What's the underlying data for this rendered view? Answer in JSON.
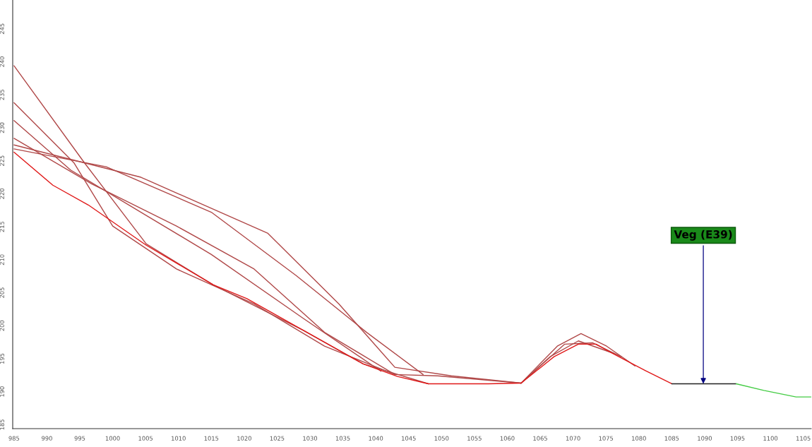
{
  "chart_data": {
    "type": "line",
    "xlim": [
      984.8,
      1106.2
    ],
    "ylim": [
      184.4,
      249.3
    ],
    "xticks": [
      985,
      990,
      995,
      1000,
      1005,
      1010,
      1015,
      1020,
      1025,
      1030,
      1035,
      1040,
      1045,
      1050,
      1055,
      1060,
      1065,
      1070,
      1075,
      1080,
      1085,
      1090,
      1095,
      1100,
      1105
    ],
    "yticks": [
      185,
      190,
      195,
      200,
      205,
      210,
      215,
      220,
      225,
      230,
      235,
      240,
      245
    ],
    "grid": false,
    "legend": false,
    "annotations": [
      {
        "text": "Veg (E39)",
        "x": 1089.8,
        "y": 191.2
      }
    ],
    "series": [
      {
        "color": "#b04848",
        "x": [
          985.0,
          995.7,
          1005.1,
          1015.3,
          1029.0,
          1038.1,
          1048.0
        ],
        "values": [
          239.4,
          224.7,
          212.4,
          206.2,
          199.3,
          194.2,
          191.2
        ]
      },
      {
        "color": "#b04848",
        "x": [
          985.0,
          994.1,
          1000.0,
          1009.7,
          1021.5,
          1032.2,
          1042.9
        ],
        "values": [
          233.8,
          224.7,
          215.1,
          208.6,
          203.3,
          196.9,
          192.6
        ]
      },
      {
        "color": "#b04848",
        "x": [
          985.0,
          999.0,
          1015.0,
          1027.9,
          1038.6,
          1047.2
        ],
        "values": [
          226.8,
          224.1,
          217.2,
          207.6,
          199.0,
          192.6
        ]
      },
      {
        "color": "#b04848",
        "x": [
          985.0,
          1004.3,
          1023.6,
          1034.4,
          1042.9,
          1051.5,
          1062.1
        ],
        "values": [
          227.4,
          222.5,
          214.0,
          203.3,
          193.7,
          192.4,
          191.3
        ]
      },
      {
        "color": "#b04848",
        "x": [
          985.0,
          993.6,
          1004.3,
          1015.0,
          1029.0,
          1040.8
        ],
        "values": [
          231.1,
          223.6,
          217.2,
          210.8,
          201.1,
          193.1
        ]
      },
      {
        "color": "#b04848",
        "x": [
          985.0,
          996.8,
          1009.7,
          1021.5,
          1032.2,
          1042.9,
          1049.4,
          1062.1
        ],
        "values": [
          228.4,
          221.5,
          215.1,
          208.6,
          199.0,
          192.6,
          192.4,
          191.3
        ]
      },
      {
        "color": "#b04848",
        "x": [
          1062.1,
          1067.6,
          1071.2,
          1075.1,
          1079.4
        ],
        "values": [
          191.3,
          196.9,
          198.8,
          196.9,
          193.9
        ]
      },
      {
        "color": "#b04848",
        "x": [
          1062.1,
          1066.5,
          1070.8,
          1076.2
        ],
        "values": [
          191.3,
          195.3,
          197.7,
          195.8
        ]
      },
      {
        "color": "#b04848",
        "x": [
          1062.1,
          1068.7,
          1073.0,
          1077.3
        ],
        "values": [
          191.3,
          197.2,
          197.4,
          195.3
        ]
      },
      {
        "color": "#e01818",
        "x": [
          985.0,
          990.9,
          996.3,
          1005.1,
          1015.3,
          1020.4,
          1029.0,
          1038.1,
          1043.3,
          1048.0,
          1052.1,
          1057.1,
          1062.1,
          1067.1,
          1070.8,
          1073.5,
          1076.0,
          1081.0,
          1085.0
        ],
        "values": [
          226.3,
          221.3,
          218.3,
          212.2,
          206.2,
          204.1,
          199.3,
          194.2,
          192.3,
          191.2,
          191.2,
          191.2,
          191.3,
          195.3,
          197.2,
          197.2,
          195.8,
          193.2,
          191.2
        ]
      },
      {
        "color": "#202020",
        "x": [
          1085.0,
          1089.8,
          1094.8
        ],
        "values": [
          191.2,
          191.2,
          191.2
        ]
      },
      {
        "color": "#44cc44",
        "x": [
          1094.8,
          1099.0,
          1103.9,
          1106.2
        ],
        "values": [
          191.2,
          190.2,
          189.2,
          189.2
        ]
      }
    ]
  }
}
